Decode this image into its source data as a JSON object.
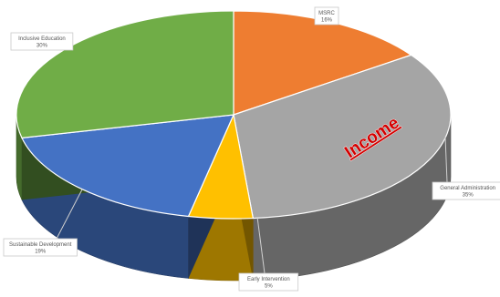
{
  "chart_data": {
    "type": "pie",
    "title": "",
    "slices": [
      {
        "label": "MSRC",
        "value": 16,
        "percent_label": "16%",
        "color": "#ee7d31"
      },
      {
        "label": "General Administration",
        "value": 35,
        "percent_label": "35%",
        "color": "#a5a5a5"
      },
      {
        "label": "Early Intervention",
        "value": 5,
        "percent_label": "5%",
        "color": "#ffc000"
      },
      {
        "label": "Sustainable Development",
        "value": 19,
        "percent_label": "19%",
        "color": "#4472c4"
      },
      {
        "label": "Inclusive Education",
        "value": 30,
        "percent_label": "30%",
        "color": "#70ad47"
      }
    ],
    "overlay_text": "Income",
    "overlay_color": "#d40000",
    "legend": "none",
    "style": "3d-perspective"
  }
}
